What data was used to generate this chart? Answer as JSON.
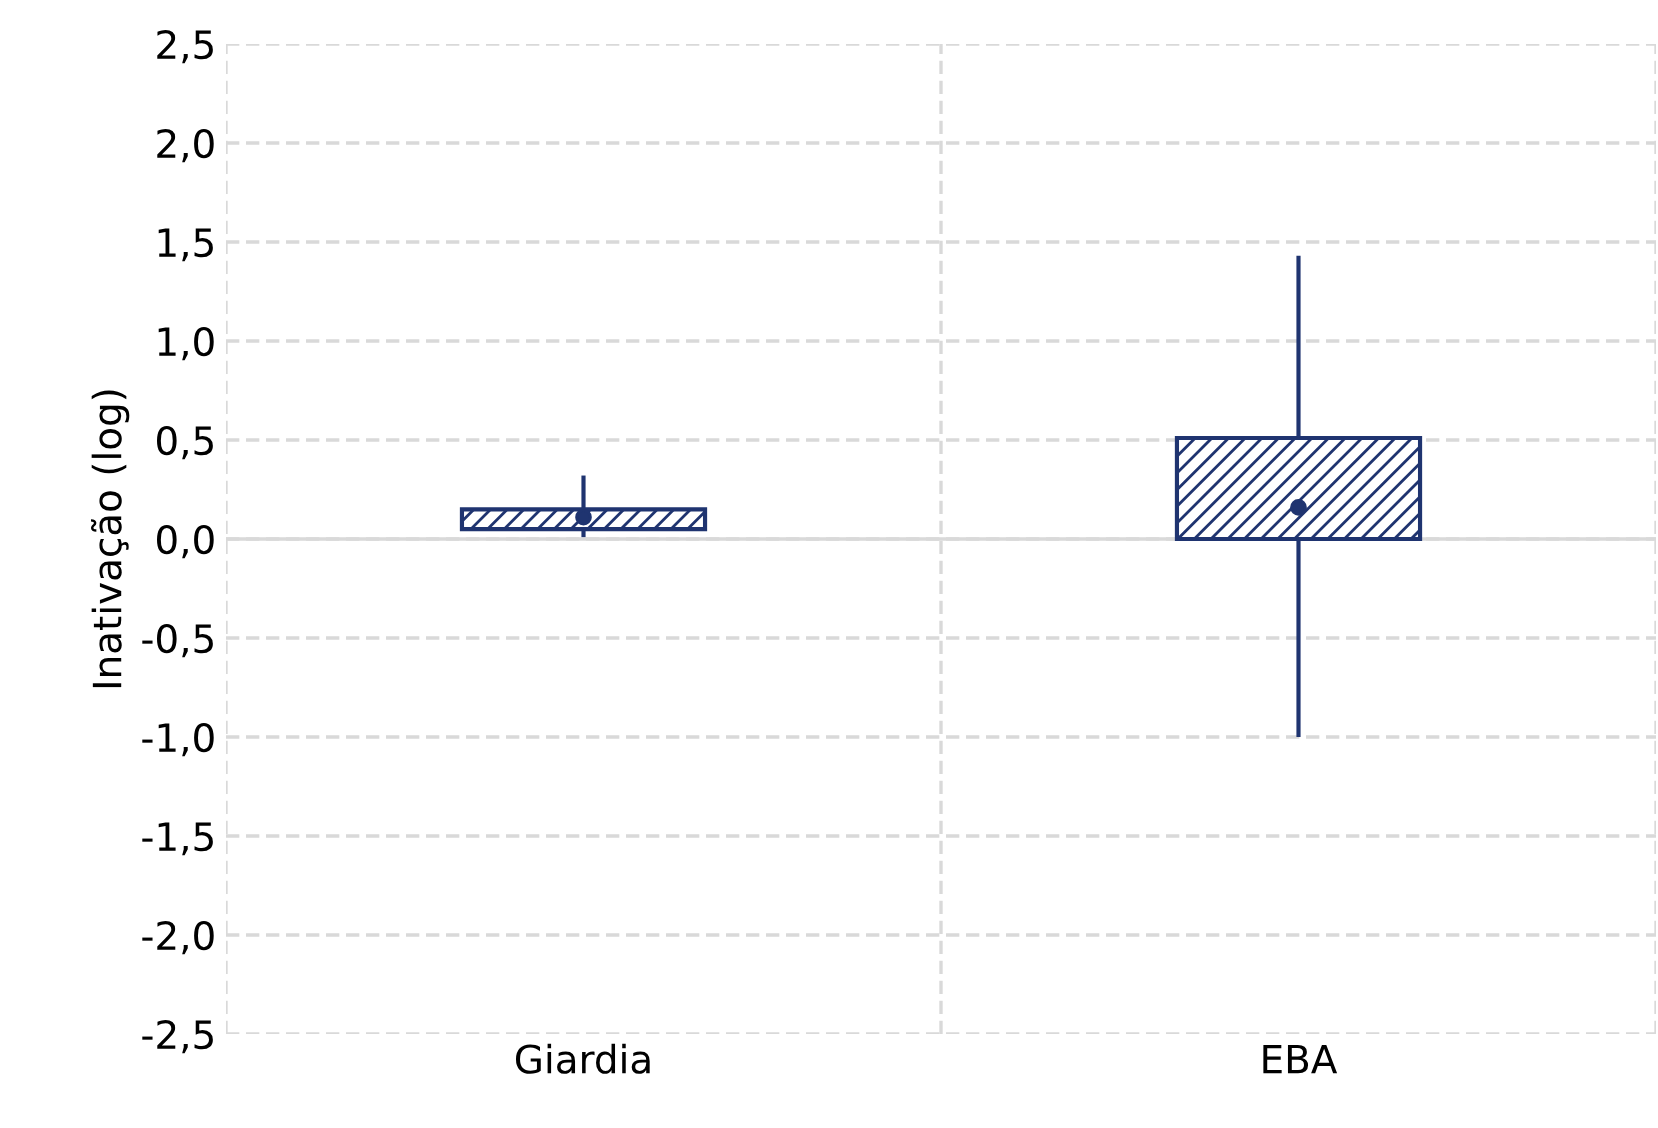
{
  "chart_data": {
    "type": "box",
    "categories": [
      "Giardia",
      "EBA"
    ],
    "ylabel": "Inativação (log)",
    "color": "#1f3470",
    "boxes": [
      {
        "low": 0.02,
        "q1": 0.05,
        "median": 0.11,
        "q3": 0.15,
        "high": 0.31
      },
      {
        "low": -0.99,
        "q1": 0.0,
        "median": 0.16,
        "q3": 0.51,
        "high": 1.42
      }
    ],
    "ylim": [
      -2.5,
      2.5
    ],
    "yticks": [
      {
        "value": -2.5,
        "label": "-2,5"
      },
      {
        "value": -2.0,
        "label": "-2,0"
      },
      {
        "value": -1.5,
        "label": "-1,5"
      },
      {
        "value": -1.0,
        "label": "-1,0"
      },
      {
        "value": -0.5,
        "label": "-0,5"
      },
      {
        "value": 0.0,
        "label": "0,0"
      },
      {
        "value": 0.5,
        "label": "0,5"
      },
      {
        "value": 1.0,
        "label": "1,0"
      },
      {
        "value": 1.5,
        "label": "1,5"
      },
      {
        "value": 2.0,
        "label": "2,0"
      },
      {
        "value": 2.5,
        "label": "2,5"
      }
    ],
    "grid": true,
    "marker": "circle",
    "ref_lines": [
      {
        "axis": "y",
        "value": 0,
        "color": "#d9d9d9",
        "line_style": "solid"
      }
    ]
  }
}
